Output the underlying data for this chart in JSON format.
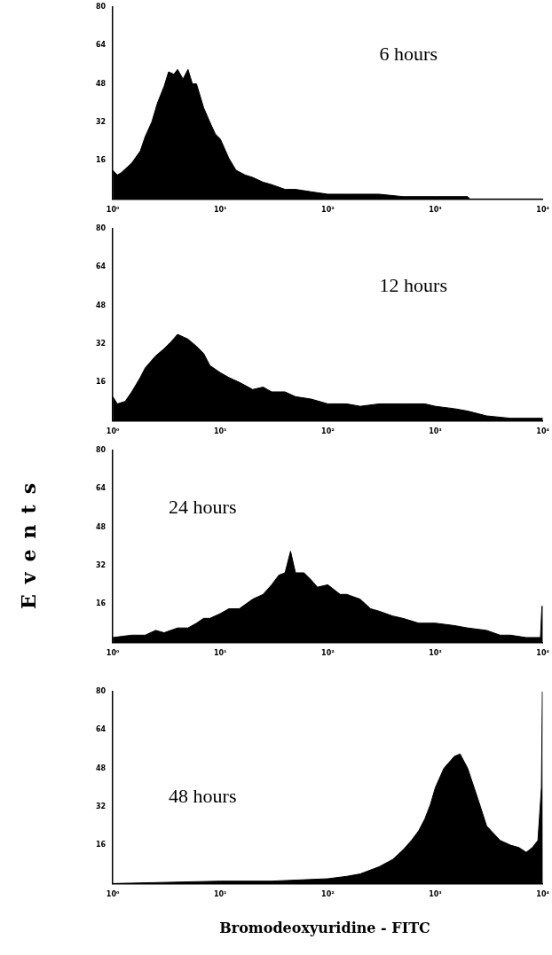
{
  "chart_data": [
    {
      "type": "area",
      "annotations": [
        "6 hours"
      ],
      "log": "x",
      "grid": false,
      "xlim": [
        1,
        10000
      ],
      "ylim": [
        0,
        80
      ],
      "xticks": [
        {
          "value": 1,
          "label": "10⁰"
        },
        {
          "value": 10,
          "label": "10¹"
        },
        {
          "value": 100,
          "label": "10²"
        },
        {
          "value": 1000,
          "label": "10³"
        },
        {
          "value": 10000,
          "label": "10⁴"
        }
      ],
      "yticks": [
        16,
        32,
        48,
        64,
        80
      ],
      "series": [
        {
          "color": "#000000",
          "x": [
            1,
            1.1,
            1.2,
            1.5,
            1.8,
            2,
            2.3,
            2.6,
            3,
            3.3,
            3.7,
            4,
            4.5,
            5,
            5.5,
            6,
            7,
            8,
            9,
            10,
            12,
            14,
            17,
            20,
            25,
            30,
            40,
            50,
            70,
            100,
            150,
            200,
            300,
            500,
            1000,
            2000,
            2100,
            10000
          ],
          "values": [
            12,
            10,
            11,
            15,
            20,
            26,
            32,
            40,
            47,
            53,
            52,
            54,
            50,
            54,
            48,
            48,
            38,
            32,
            27,
            25,
            17,
            12,
            10,
            9,
            7,
            6,
            4,
            4,
            3,
            2,
            2,
            2,
            2,
            1,
            1,
            1,
            0,
            0
          ]
        }
      ]
    },
    {
      "type": "area",
      "annotations": [
        "12 hours"
      ],
      "log": "x",
      "grid": false,
      "xlim": [
        1,
        10000
      ],
      "ylim": [
        0,
        80
      ],
      "xticks": [
        {
          "value": 1,
          "label": "10⁰"
        },
        {
          "value": 10,
          "label": "10¹"
        },
        {
          "value": 100,
          "label": "10²"
        },
        {
          "value": 1000,
          "label": "10³"
        },
        {
          "value": 10000,
          "label": "10⁴"
        }
      ],
      "yticks": [
        16,
        32,
        48,
        64,
        80
      ],
      "series": [
        {
          "color": "#000000",
          "x": [
            1,
            1.1,
            1.3,
            1.5,
            1.8,
            2,
            2.5,
            3,
            3.5,
            4,
            5,
            6,
            7,
            8,
            10,
            12,
            15,
            20,
            25,
            30,
            40,
            50,
            70,
            100,
            150,
            200,
            300,
            500,
            800,
            1000,
            1500,
            2000,
            3000,
            5000,
            10000
          ],
          "values": [
            10,
            7,
            8,
            12,
            18,
            22,
            27,
            30,
            33,
            36,
            34,
            31,
            28,
            23,
            20,
            18,
            16,
            13,
            14,
            12,
            12,
            10,
            9,
            7,
            7,
            6,
            7,
            7,
            7,
            6,
            5,
            4,
            2,
            1,
            1
          ]
        }
      ]
    },
    {
      "type": "area",
      "annotations": [
        "24 hours"
      ],
      "ylabel": "Events",
      "log": "x",
      "grid": false,
      "xlim": [
        1,
        10000
      ],
      "ylim": [
        0,
        80
      ],
      "xticks": [
        {
          "value": 1,
          "label": "10⁰"
        },
        {
          "value": 10,
          "label": "10¹"
        },
        {
          "value": 100,
          "label": "10²"
        },
        {
          "value": 1000,
          "label": "10³"
        },
        {
          "value": 10000,
          "label": "10⁴"
        }
      ],
      "yticks": [
        16,
        32,
        48,
        64,
        80
      ],
      "series": [
        {
          "color": "#000000",
          "x": [
            1,
            1.5,
            2,
            2.5,
            3,
            4,
            5,
            6,
            7,
            8,
            10,
            12,
            15,
            20,
            25,
            30,
            35,
            40,
            45,
            50,
            60,
            70,
            80,
            100,
            130,
            150,
            200,
            250,
            300,
            400,
            500,
            700,
            1000,
            1500,
            2000,
            3000,
            4000,
            5000,
            7000,
            9500,
            9800,
            10000
          ],
          "values": [
            2,
            3,
            3,
            5,
            4,
            6,
            6,
            8,
            10,
            10,
            12,
            14,
            14,
            18,
            20,
            24,
            28,
            29,
            38,
            29,
            29,
            26,
            23,
            24,
            20,
            20,
            18,
            14,
            13,
            11,
            10,
            8,
            8,
            7,
            6,
            5,
            3,
            3,
            2,
            2,
            15,
            15
          ]
        }
      ]
    },
    {
      "type": "area",
      "annotations": [
        "48 hours"
      ],
      "xlabel": "Bromodeoxyuridine - FITC",
      "log": "x",
      "grid": false,
      "xlim": [
        1,
        10000
      ],
      "ylim": [
        0,
        80
      ],
      "xticks": [
        {
          "value": 1,
          "label": "10⁰"
        },
        {
          "value": 10,
          "label": "10¹"
        },
        {
          "value": 100,
          "label": "10²"
        },
        {
          "value": 1000,
          "label": "10³"
        },
        {
          "value": 10000,
          "label": "10⁴"
        }
      ],
      "yticks": [
        16,
        32,
        48,
        64,
        80
      ],
      "series": [
        {
          "color": "#000000",
          "x": [
            1,
            10,
            30,
            100,
            150,
            200,
            300,
            400,
            500,
            600,
            700,
            800,
            900,
            1000,
            1200,
            1500,
            1700,
            2000,
            2500,
            3000,
            4000,
            5000,
            6000,
            7000,
            8000,
            9000,
            9700,
            9900,
            10000
          ],
          "values": [
            0,
            1,
            1,
            2,
            3,
            4,
            7,
            10,
            14,
            18,
            22,
            27,
            33,
            40,
            48,
            53,
            54,
            48,
            35,
            24,
            18,
            16,
            15,
            13,
            15,
            18,
            40,
            80,
            80
          ]
        }
      ]
    }
  ]
}
